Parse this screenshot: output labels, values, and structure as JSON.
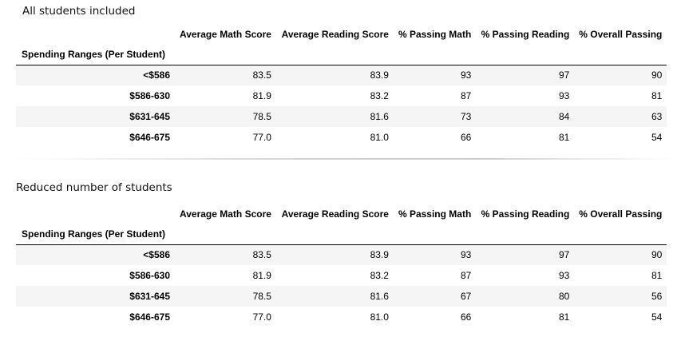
{
  "section1": {
    "caption": "All students included",
    "index_name": "Spending Ranges (Per Student)",
    "columns": [
      "Average Math Score",
      "Average Reading Score",
      "% Passing Math",
      "% Passing Reading",
      "% Overall Passing"
    ],
    "rows": [
      {
        "label": "<$586",
        "values": [
          "83.5",
          "83.9",
          "93",
          "97",
          "90"
        ]
      },
      {
        "label": "$586-630",
        "values": [
          "81.9",
          "83.2",
          "87",
          "93",
          "81"
        ]
      },
      {
        "label": "$631-645",
        "values": [
          "78.5",
          "81.6",
          "73",
          "84",
          "63"
        ]
      },
      {
        "label": "$646-675",
        "values": [
          "77.0",
          "81.0",
          "66",
          "81",
          "54"
        ]
      }
    ]
  },
  "section2": {
    "caption": "Reduced number of students",
    "index_name": "Spending Ranges (Per Student)",
    "columns": [
      "Average Math Score",
      "Average Reading Score",
      "% Passing Math",
      "% Passing Reading",
      "% Overall Passing"
    ],
    "rows": [
      {
        "label": "<$586",
        "values": [
          "83.5",
          "83.9",
          "93",
          "97",
          "90"
        ]
      },
      {
        "label": "$586-630",
        "values": [
          "81.9",
          "83.2",
          "87",
          "93",
          "81"
        ]
      },
      {
        "label": "$631-645",
        "values": [
          "78.5",
          "81.6",
          "67",
          "80",
          "56"
        ]
      },
      {
        "label": "$646-675",
        "values": [
          "77.0",
          "81.0",
          "66",
          "81",
          "54"
        ]
      }
    ]
  }
}
